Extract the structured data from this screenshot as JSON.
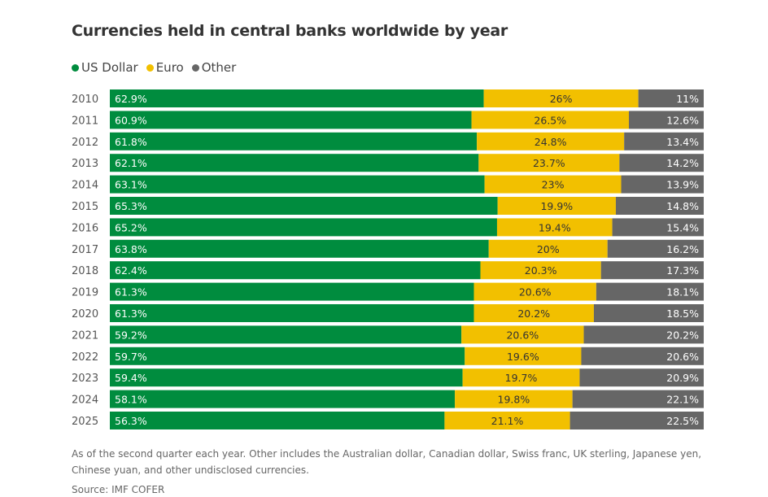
{
  "chart_data": {
    "type": "bar",
    "orientation": "horizontal",
    "stacked": "100%",
    "title": "Currencies held in central banks worldwide by year",
    "categories": [
      "2010",
      "2011",
      "2012",
      "2013",
      "2014",
      "2015",
      "2016",
      "2017",
      "2018",
      "2019",
      "2020",
      "2021",
      "2022",
      "2023",
      "2024",
      "2025"
    ],
    "series": [
      {
        "name": "US Dollar",
        "color": "#008c3e",
        "values": [
          62.9,
          60.9,
          61.8,
          62.1,
          63.1,
          65.3,
          65.2,
          63.8,
          62.4,
          61.3,
          61.3,
          59.2,
          59.7,
          59.4,
          58.1,
          56.3
        ],
        "labels": [
          "62.9%",
          "60.9%",
          "61.8%",
          "62.1%",
          "63.1%",
          "65.3%",
          "65.2%",
          "63.8%",
          "62.4%",
          "61.3%",
          "61.3%",
          "59.2%",
          "59.7%",
          "59.4%",
          "58.1%",
          "56.3%"
        ]
      },
      {
        "name": "Euro",
        "color": "#f2c000",
        "values": [
          26,
          26.5,
          24.8,
          23.7,
          23,
          19.9,
          19.4,
          20,
          20.3,
          20.6,
          20.2,
          20.6,
          19.6,
          19.7,
          19.8,
          21.1
        ],
        "labels": [
          "26%",
          "26.5%",
          "24.8%",
          "23.7%",
          "23%",
          "19.9%",
          "19.4%",
          "20%",
          "20.3%",
          "20.6%",
          "20.2%",
          "20.6%",
          "19.6%",
          "19.7%",
          "19.8%",
          "21.1%"
        ]
      },
      {
        "name": "Other",
        "color": "#666666",
        "values": [
          11,
          12.6,
          13.4,
          14.2,
          13.9,
          14.8,
          15.4,
          16.2,
          17.3,
          18.1,
          18.5,
          20.2,
          20.6,
          20.9,
          22.1,
          22.5
        ],
        "labels": [
          "11%",
          "12.6%",
          "13.4%",
          "14.2%",
          "13.9%",
          "14.8%",
          "15.4%",
          "16.2%",
          "17.3%",
          "18.1%",
          "18.5%",
          "20.2%",
          "20.6%",
          "20.9%",
          "22.1%",
          "22.5%"
        ]
      }
    ],
    "legend": "top-left",
    "grid": false
  },
  "footnote": "As of the second quarter each year. Other includes the Australian dollar, Canadian dollar, Swiss franc, UK sterling, Japanese yen, Chinese yuan, and other undisclosed currencies.",
  "source": "Source: IMF COFER"
}
